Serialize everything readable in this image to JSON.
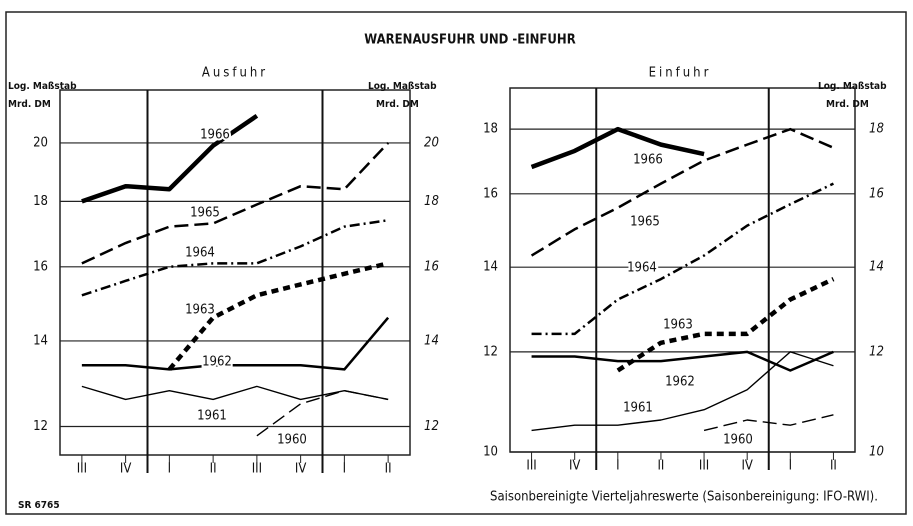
{
  "title": "WARENAUSFUHR UND -EINFUHR",
  "source_code": "SR 6765",
  "footnote": "Saisonbereinigte Vierteljahreswerte (Saisonbereinigung: IFO-RWI).",
  "chart_data": [
    {
      "type": "line",
      "title": "Ausfuhr",
      "ylabel": "Log. Maßstab",
      "yunit": "Mrd. DM",
      "ylabel_sides": [
        "left",
        "right"
      ],
      "log_scale": true,
      "grid": true,
      "categories": [
        "III",
        "IV",
        "I",
        "II",
        "III",
        "IV",
        "I",
        "II"
      ],
      "ylim": [
        11.4,
        22
      ],
      "yticks": [
        12,
        14,
        16,
        18,
        20
      ],
      "series": [
        {
          "name": "1966",
          "color": "#000000",
          "weight": "thick",
          "dash": "solid",
          "values": [
            18.0,
            18.5,
            18.4,
            19.9,
            21.0,
            null,
            null,
            null
          ]
        },
        {
          "name": "1965",
          "color": "#000000",
          "weight": "medium",
          "dash": "long",
          "values": [
            16.1,
            16.7,
            17.2,
            17.3,
            17.9,
            18.5,
            18.4,
            20.0
          ]
        },
        {
          "name": "1964",
          "color": "#000000",
          "weight": "medium",
          "dash": "dashdot",
          "values": [
            15.2,
            15.6,
            16.0,
            16.1,
            16.1,
            16.6,
            17.2,
            17.4
          ]
        },
        {
          "name": "1963",
          "color": "#000000",
          "weight": "thick",
          "dash": "short",
          "values": [
            null,
            null,
            13.3,
            14.6,
            15.2,
            15.5,
            15.8,
            16.1
          ]
        },
        {
          "name": "1962",
          "color": "#000000",
          "weight": "medium",
          "dash": "solid",
          "values": [
            13.4,
            13.4,
            13.3,
            13.4,
            13.4,
            13.4,
            13.3,
            14.6
          ]
        },
        {
          "name": "1961",
          "color": "#000000",
          "weight": "thin",
          "dash": "solid",
          "values": [
            12.9,
            12.6,
            12.8,
            12.6,
            12.9,
            12.6,
            12.8,
            12.6
          ]
        },
        {
          "name": "1960",
          "color": "#000000",
          "weight": "thin",
          "dash": "long",
          "values": [
            null,
            null,
            null,
            null,
            11.8,
            12.5,
            12.8,
            12.6
          ]
        }
      ]
    },
    {
      "type": "line",
      "title": "Einfuhr",
      "ylabel": "Log. Maßstab",
      "yunit": "Mrd. DM",
      "ylabel_sides": [
        "right"
      ],
      "log_scale": true,
      "grid": true,
      "categories": [
        "III",
        "IV",
        "I",
        "II",
        "III",
        "IV",
        "I",
        "II"
      ],
      "ylim": [
        10,
        19.4
      ],
      "yticks": [
        10,
        12,
        14,
        16,
        18
      ],
      "series": [
        {
          "name": "1966",
          "color": "#000000",
          "weight": "thick",
          "dash": "solid",
          "values": [
            16.8,
            17.3,
            18.0,
            17.5,
            17.2,
            null,
            null,
            null
          ]
        },
        {
          "name": "1965",
          "color": "#000000",
          "weight": "medium",
          "dash": "long",
          "values": [
            14.3,
            15.0,
            15.6,
            16.3,
            17.0,
            17.5,
            18.0,
            17.4
          ]
        },
        {
          "name": "1964",
          "color": "#000000",
          "weight": "medium",
          "dash": "dashdot",
          "values": [
            12.4,
            12.4,
            13.2,
            13.7,
            14.3,
            15.1,
            15.7,
            16.3
          ]
        },
        {
          "name": "1963",
          "color": "#000000",
          "weight": "thick",
          "dash": "short",
          "values": [
            null,
            null,
            11.6,
            12.2,
            12.4,
            12.4,
            13.2,
            13.7
          ]
        },
        {
          "name": "1962",
          "color": "#000000",
          "weight": "medium",
          "dash": "solid",
          "values": [
            11.9,
            11.9,
            11.8,
            11.8,
            11.9,
            12.0,
            11.6,
            12.0
          ]
        },
        {
          "name": "1961",
          "color": "#000000",
          "weight": "thin",
          "dash": "solid",
          "values": [
            10.4,
            10.5,
            10.5,
            10.6,
            10.8,
            11.2,
            12.0,
            11.7
          ]
        },
        {
          "name": "1960",
          "color": "#000000",
          "weight": "thin",
          "dash": "long",
          "values": [
            null,
            null,
            null,
            null,
            10.4,
            10.6,
            10.5,
            10.7
          ]
        }
      ]
    }
  ]
}
